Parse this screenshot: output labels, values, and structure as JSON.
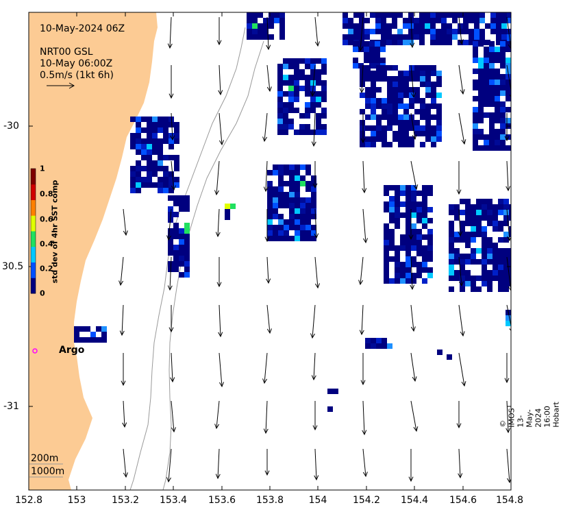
{
  "header": {
    "date": "10-May-2024 06Z",
    "product": "NRT00 GSL",
    "time": "10-May 06:00Z",
    "scale": "0.5m/s (1kt 6h)"
  },
  "colorbar": {
    "title": "std dev of 4hr SST comp",
    "ticks": [
      "1",
      "0.8",
      "0.6",
      "0.4",
      "0.2",
      "0"
    ],
    "colors": [
      "#00007f",
      "#0050ff",
      "#00c8ff",
      "#20e060",
      "#e0ff00",
      "#ff8000",
      "#d00000",
      "#7f0000"
    ]
  },
  "axes": {
    "x_ticks": [
      "152.8",
      "153",
      "153.2",
      "153.4",
      "153.6",
      "153.8",
      "154",
      "154.2",
      "154.4",
      "154.6",
      "154.8"
    ],
    "y_ticks": [
      "-30",
      "30.5",
      "-31"
    ]
  },
  "annotations": {
    "argo": "Argo",
    "contour_200": "200m",
    "contour_1000": "1000m"
  },
  "credit": "© IMOS 13-May-2024 16:00 Hobart",
  "colors": {
    "land": "#fccb94",
    "argo_marker": "#ff00ff",
    "contour": "#999999"
  }
}
